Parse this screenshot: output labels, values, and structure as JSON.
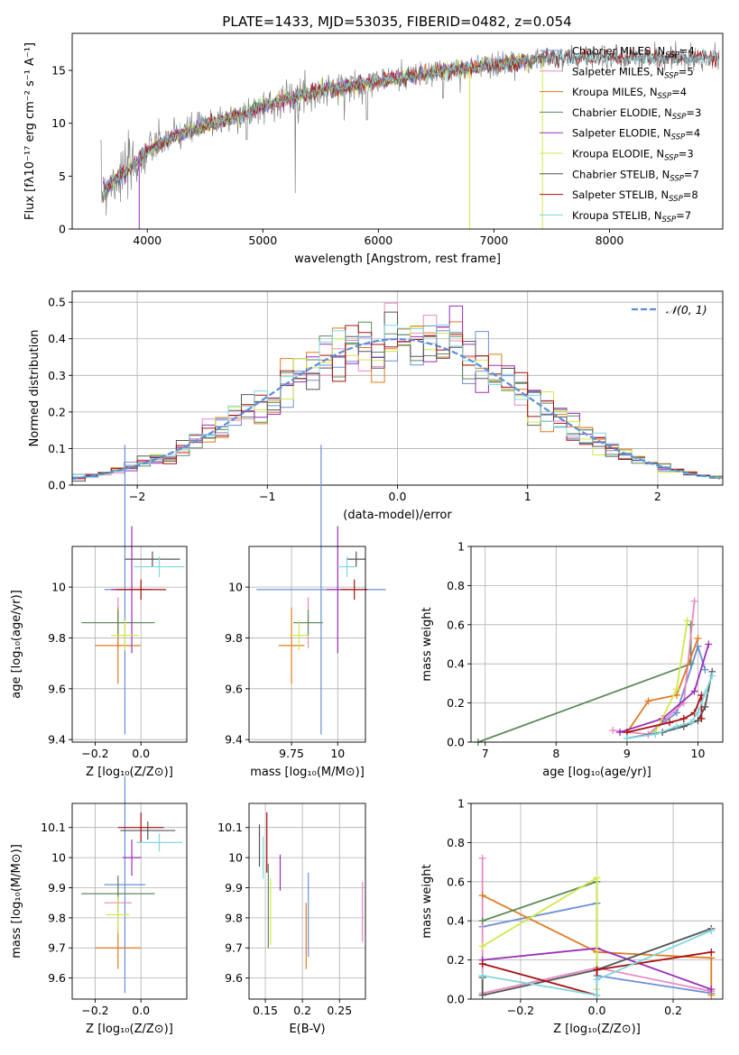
{
  "title": "PLATE=1433, MJD=53035, FIBERID=0482, z=0.054",
  "colors": {
    "Chabrier MILES": "#6b8fd6",
    "Salpeter MILES": "#e88ac4",
    "Kroupa MILES": "#e07b1f",
    "Chabrier ELODIE": "#5c8a5c",
    "Salpeter ELODIE": "#9a2fb8",
    "Kroupa ELODIE": "#d0e84a",
    "Chabrier STELIB": "#555555",
    "Salpeter STELIB": "#a81010",
    "Kroupa STELIB": "#7fd8e0",
    "spectrum": "#808080",
    "gaussian": "#5b8fd6"
  },
  "chart_data": [
    {
      "id": "spectrum",
      "type": "line",
      "xlabel": "wavelength [Angstrom, rest frame]",
      "ylabel": "Flux [fλ10⁻¹⁷ erg cm⁻² s⁻¹ A⁻¹]",
      "xlim": [
        3350,
        8980
      ],
      "ylim": [
        0,
        18.5
      ],
      "xticks": [
        4000,
        5000,
        6000,
        7000,
        8000
      ],
      "yticks": [
        0,
        5,
        10,
        15
      ],
      "legend_position": "top-right",
      "continuum_x": [
        3600,
        3700,
        3800,
        3900,
        4000,
        4200,
        4500,
        4800,
        5000,
        5200,
        5500,
        6000,
        6500,
        7000,
        7300,
        7450
      ],
      "continuum_y": [
        3.4,
        4.6,
        5.2,
        6.2,
        7.4,
        8.6,
        9.8,
        10.7,
        11.6,
        12.3,
        13.1,
        14.0,
        14.8,
        15.5,
        15.9,
        16.2
      ],
      "data_extends_to": 8950,
      "model_drops": [
        {
          "name": "Kroupa ELODIE",
          "x": 6790
        },
        {
          "name": "Kroupa ELODIE",
          "x": 7420
        },
        {
          "name": "Salpeter ELODIE",
          "x": 3930
        }
      ],
      "series": [
        {
          "name": "Chabrier MILES",
          "label": "Chabrier MILES, N",
          "sub": "SSP",
          "tail": "=4"
        },
        {
          "name": "Salpeter MILES",
          "label": "Salpeter MILES, N",
          "sub": "SSP",
          "tail": "=5"
        },
        {
          "name": "Kroupa MILES",
          "label": "Kroupa MILES, N",
          "sub": "SSP",
          "tail": "=4"
        },
        {
          "name": "Chabrier ELODIE",
          "label": "Chabrier ELODIE, N",
          "sub": "SSP",
          "tail": "=3"
        },
        {
          "name": "Salpeter ELODIE",
          "label": "Salpeter ELODIE, N",
          "sub": "SSP",
          "tail": "=4"
        },
        {
          "name": "Kroupa ELODIE",
          "label": "Kroupa ELODIE, N",
          "sub": "SSP",
          "tail": "=3"
        },
        {
          "name": "Chabrier STELIB",
          "label": "Chabrier STELIB, N",
          "sub": "SSP",
          "tail": "=7"
        },
        {
          "name": "Salpeter STELIB",
          "label": "Salpeter STELIB, N",
          "sub": "SSP",
          "tail": "=8"
        },
        {
          "name": "Kroupa STELIB",
          "label": "Kroupa STELIB, N",
          "sub": "SSP",
          "tail": "=7"
        }
      ]
    },
    {
      "id": "residuals",
      "type": "histogram",
      "xlabel": "(data-model)/error",
      "ylabel": "Normed distribution",
      "xlim": [
        -2.5,
        2.5
      ],
      "ylim": [
        0,
        0.53
      ],
      "xticks": [
        -2,
        -1,
        0,
        1,
        2
      ],
      "yticks": [
        0.0,
        0.1,
        0.2,
        0.3,
        0.4,
        0.5
      ],
      "grid": true,
      "bin_width": 0.1,
      "legend": "𝒩(0, 1)",
      "legend_position": "top-right"
    },
    {
      "id": "age-vs-Z",
      "type": "errorbar",
      "xlabel": "Z [log₁₀(Z/Z⊙)]",
      "ylabel": "age  [log₁₀(age/yr)]",
      "xlim": [
        -0.3,
        0.2
      ],
      "ylim": [
        9.39,
        10.16
      ],
      "xticks": [
        -0.2,
        0.0
      ],
      "yticks": [
        9.4,
        9.6,
        9.8,
        10.0
      ],
      "grid": true,
      "points": [
        {
          "name": "Chabrier MILES",
          "x": -0.07,
          "y": 9.99,
          "xerr": 0.09,
          "yerr": 0.57
        },
        {
          "name": "Salpeter MILES",
          "x": -0.1,
          "y": 9.86,
          "xerr": 0.14,
          "yerr": 0.1
        },
        {
          "name": "Kroupa MILES",
          "x": -0.1,
          "y": 9.77,
          "xerr": 0.1,
          "yerr": 0.15
        },
        {
          "name": "Chabrier ELODIE",
          "x": -0.1,
          "y": 9.86,
          "xerr": 0.16,
          "yerr": 0.05
        },
        {
          "name": "Salpeter ELODIE",
          "x": -0.04,
          "y": 9.99,
          "xerr": 0.09,
          "yerr": 0.25
        },
        {
          "name": "Kroupa ELODIE",
          "x": -0.07,
          "y": 9.81,
          "xerr": 0.06,
          "yerr": 0.06
        },
        {
          "name": "Chabrier STELIB",
          "x": 0.05,
          "y": 10.11,
          "xerr": 0.12,
          "yerr": 0.03
        },
        {
          "name": "Salpeter STELIB",
          "x": 0.0,
          "y": 9.99,
          "xerr": 0.11,
          "yerr": 0.04
        },
        {
          "name": "Kroupa STELIB",
          "x": 0.08,
          "y": 10.08,
          "xerr": 0.11,
          "yerr": 0.04
        }
      ]
    },
    {
      "id": "age-vs-mass",
      "type": "errorbar",
      "xlabel": "mass [log₁₀(M/M⊙)]",
      "ylabel": "",
      "xlim": [
        9.52,
        10.15
      ],
      "ylim": [
        9.39,
        10.16
      ],
      "xticks": [
        9.75,
        10.0
      ],
      "yticks": [
        9.4,
        9.6,
        9.8,
        10.0
      ],
      "grid": true,
      "points": [
        {
          "name": "Chabrier MILES",
          "x": 9.91,
          "y": 9.99,
          "xerr": 0.35,
          "yerr": 0.57
        },
        {
          "name": "Salpeter MILES",
          "x": 9.84,
          "y": 9.86,
          "xerr": 0.07,
          "yerr": 0.1
        },
        {
          "name": "Kroupa MILES",
          "x": 9.75,
          "y": 9.77,
          "xerr": 0.07,
          "yerr": 0.15
        },
        {
          "name": "Chabrier ELODIE",
          "x": 9.84,
          "y": 9.86,
          "xerr": 0.08,
          "yerr": 0.05
        },
        {
          "name": "Salpeter ELODIE",
          "x": 10.0,
          "y": 9.99,
          "xerr": 0.06,
          "yerr": 0.25
        },
        {
          "name": "Kroupa ELODIE",
          "x": 9.79,
          "y": 9.81,
          "xerr": 0.05,
          "yerr": 0.06
        },
        {
          "name": "Chabrier STELIB",
          "x": 10.1,
          "y": 10.11,
          "xerr": 0.05,
          "yerr": 0.03
        },
        {
          "name": "Salpeter STELIB",
          "x": 10.09,
          "y": 9.99,
          "xerr": 0.07,
          "yerr": 0.04
        },
        {
          "name": "Kroupa STELIB",
          "x": 10.05,
          "y": 10.08,
          "xerr": 0.05,
          "yerr": 0.04
        }
      ]
    },
    {
      "id": "weight-vs-age",
      "type": "line",
      "xlabel": "age  [log₁₀(age/yr)]",
      "ylabel": "mass weight",
      "xlim": [
        6.8,
        10.35
      ],
      "ylim": [
        0,
        1
      ],
      "xticks": [
        7,
        8,
        9,
        10
      ],
      "yticks": [
        0.0,
        0.2,
        0.4,
        0.6,
        0.8,
        1.0
      ],
      "grid": true,
      "series": [
        {
          "name": "Chabrier ELODIE",
          "x": [
            6.9,
            9.9,
            9.9
          ],
          "y": [
            0.0,
            0.4,
            0.6
          ]
        },
        {
          "name": "Chabrier MILES",
          "x": [
            9.3,
            9.7,
            10.0,
            10.1
          ],
          "y": [
            0.04,
            0.15,
            0.49,
            0.37
          ]
        },
        {
          "name": "Salpeter MILES",
          "x": [
            8.8,
            9.3,
            9.8,
            9.95
          ],
          "y": [
            0.06,
            0.04,
            0.2,
            0.72
          ]
        },
        {
          "name": "Kroupa MILES",
          "x": [
            9.0,
            9.3,
            9.7,
            10.0
          ],
          "y": [
            0.05,
            0.21,
            0.24,
            0.53
          ]
        },
        {
          "name": "Salpeter ELODIE",
          "x": [
            8.9,
            9.5,
            9.95,
            10.15
          ],
          "y": [
            0.05,
            0.12,
            0.26,
            0.5
          ]
        },
        {
          "name": "Kroupa ELODIE",
          "x": [
            9.4,
            9.7,
            9.85
          ],
          "y": [
            0.05,
            0.27,
            0.62
          ]
        },
        {
          "name": "Chabrier STELIB",
          "x": [
            9.0,
            9.5,
            9.8,
            10.0,
            10.1,
            10.2
          ],
          "y": [
            0.02,
            0.05,
            0.08,
            0.11,
            0.18,
            0.36
          ]
        },
        {
          "name": "Salpeter STELIB",
          "x": [
            9.0,
            9.6,
            9.8,
            9.95,
            10.05,
            10.05
          ],
          "y": [
            0.05,
            0.1,
            0.12,
            0.15,
            0.24,
            0.12
          ]
        },
        {
          "name": "Kroupa STELIB",
          "x": [
            9.0,
            9.4,
            9.7,
            9.9,
            10.0,
            10.1,
            10.2
          ],
          "y": [
            0.02,
            0.04,
            0.08,
            0.1,
            0.15,
            0.25,
            0.34
          ]
        }
      ]
    },
    {
      "id": "mass-vs-Z",
      "type": "errorbar",
      "xlabel": "Z [log₁₀(Z/Z⊙)]",
      "ylabel": "mass [log₁₀(M/M⊙)]",
      "xlim": [
        -0.3,
        0.2
      ],
      "ylim": [
        9.53,
        10.18
      ],
      "xticks": [
        -0.2,
        0.0
      ],
      "yticks": [
        9.6,
        9.7,
        9.8,
        9.9,
        10.0,
        10.1
      ],
      "grid": true,
      "points": [
        {
          "name": "Chabrier MILES",
          "x": -0.07,
          "y": 9.91,
          "xerr": 0.09,
          "yerr": 0.36
        },
        {
          "name": "Salpeter MILES",
          "x": -0.1,
          "y": 9.85,
          "xerr": 0.06,
          "yerr": 0.08
        },
        {
          "name": "Kroupa MILES",
          "x": -0.1,
          "y": 9.7,
          "xerr": 0.1,
          "yerr": 0.07
        },
        {
          "name": "Chabrier ELODIE",
          "x": -0.1,
          "y": 9.88,
          "xerr": 0.16,
          "yerr": 0.06
        },
        {
          "name": "Salpeter ELODIE",
          "x": -0.04,
          "y": 10.0,
          "xerr": 0.04,
          "yerr": 0.06
        },
        {
          "name": "Kroupa ELODIE",
          "x": -0.1,
          "y": 9.81,
          "xerr": 0.05,
          "yerr": 0.06
        },
        {
          "name": "Chabrier STELIB",
          "x": 0.03,
          "y": 10.09,
          "xerr": 0.12,
          "yerr": 0.03
        },
        {
          "name": "Salpeter STELIB",
          "x": 0.0,
          "y": 10.1,
          "xerr": 0.1,
          "yerr": 0.05
        },
        {
          "name": "Kroupa STELIB",
          "x": 0.08,
          "y": 10.05,
          "xerr": 0.1,
          "yerr": 0.03
        }
      ]
    },
    {
      "id": "mass-vs-ebv",
      "type": "errorbar",
      "xlabel": "E(B-V)",
      "ylabel": "",
      "xlim": [
        0.128,
        0.285
      ],
      "ylim": [
        9.53,
        10.18
      ],
      "xticks": [
        0.15,
        0.2,
        0.25
      ],
      "yticks": [
        9.6,
        9.7,
        9.8,
        9.9,
        10.0,
        10.1
      ],
      "grid": true,
      "points": [
        {
          "name": "Chabrier MILES",
          "x": 0.208,
          "y": 9.81,
          "xerr": 0,
          "yerr": 0.14
        },
        {
          "name": "Salpeter MILES",
          "x": 0.281,
          "y": 9.82,
          "xerr": 0,
          "yerr": 0.1
        },
        {
          "name": "Kroupa MILES",
          "x": 0.205,
          "y": 9.74,
          "xerr": 0,
          "yerr": 0.11
        },
        {
          "name": "Chabrier ELODIE",
          "x": 0.154,
          "y": 9.84,
          "xerr": 0,
          "yerr": 0.14
        },
        {
          "name": "Salpeter ELODIE",
          "x": 0.17,
          "y": 9.95,
          "xerr": 0,
          "yerr": 0.06
        },
        {
          "name": "Kroupa ELODIE",
          "x": 0.157,
          "y": 9.82,
          "xerr": 0,
          "yerr": 0.11
        },
        {
          "name": "Chabrier STELIB",
          "x": 0.142,
          "y": 10.04,
          "xerr": 0,
          "yerr": 0.07
        },
        {
          "name": "Salpeter STELIB",
          "x": 0.152,
          "y": 10.05,
          "xerr": 0,
          "yerr": 0.1
        },
        {
          "name": "Kroupa STELIB",
          "x": 0.147,
          "y": 10.0,
          "xerr": 0,
          "yerr": 0.07
        }
      ]
    },
    {
      "id": "weight-vs-Z",
      "type": "line",
      "xlabel": "Z [log₁₀(Z/Z⊙)]",
      "ylabel": "mass weight",
      "xlim": [
        -0.33,
        0.33
      ],
      "ylim": [
        0,
        1
      ],
      "xticks": [
        -0.2,
        0.0,
        0.2
      ],
      "yticks": [
        0.0,
        0.2,
        0.4,
        0.6,
        0.8,
        1.0
      ],
      "grid": true,
      "series": [
        {
          "name": "Chabrier MILES",
          "x": [
            -0.3,
            0.0,
            0.0,
            0.3
          ],
          "y": [
            0.37,
            0.49,
            0.12,
            0.03
          ]
        },
        {
          "name": "Salpeter MILES",
          "x": [
            -0.3,
            -0.3,
            0.0,
            0.3
          ],
          "y": [
            0.72,
            0.03,
            0.16,
            0.04
          ]
        },
        {
          "name": "Kroupa MILES",
          "x": [
            -0.3,
            0.0,
            0.3,
            0.3
          ],
          "y": [
            0.53,
            0.24,
            0.21,
            0.02
          ]
        },
        {
          "name": "Chabrier ELODIE",
          "x": [
            -0.3,
            0.0,
            0.0
          ],
          "y": [
            0.4,
            0.6,
            0.02
          ]
        },
        {
          "name": "Salpeter ELODIE",
          "x": [
            -0.3,
            0.0,
            0.3
          ],
          "y": [
            0.2,
            0.26,
            0.05
          ]
        },
        {
          "name": "Kroupa ELODIE",
          "x": [
            -0.3,
            0.0,
            0.0
          ],
          "y": [
            0.27,
            0.62,
            0.05
          ]
        },
        {
          "name": "Chabrier STELIB",
          "x": [
            -0.3,
            -0.3,
            0.0,
            0.3
          ],
          "y": [
            0.11,
            0.02,
            0.15,
            0.36
          ]
        },
        {
          "name": "Salpeter STELIB",
          "x": [
            -0.3,
            0.0,
            0.0,
            0.3
          ],
          "y": [
            0.18,
            0.02,
            0.15,
            0.24
          ]
        },
        {
          "name": "Kroupa STELIB",
          "x": [
            -0.3,
            0.0,
            0.0,
            0.3
          ],
          "y": [
            0.12,
            0.02,
            0.1,
            0.35
          ]
        }
      ]
    }
  ]
}
